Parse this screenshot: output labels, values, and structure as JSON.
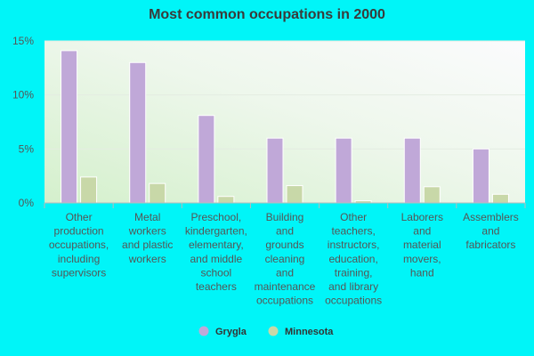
{
  "chart_data": {
    "type": "bar",
    "title": "Most common occupations in 2000",
    "categories": [
      "Other production occupations, including supervisors",
      "Metal workers and plastic workers",
      "Preschool, kindergarten, elementary, and middle school teachers",
      "Building and grounds cleaning and maintenance occupations",
      "Other teachers, instructors, education, training, and library occupations",
      "Laborers and material movers, hand",
      "Assemblers and fabricators"
    ],
    "category_lines": [
      [
        "Other",
        "production",
        "occupations,",
        "including",
        "supervisors"
      ],
      [
        "Metal",
        "workers",
        "and plastic",
        "workers"
      ],
      [
        "Preschool,",
        "kindergarten,",
        "elementary,",
        "and middle",
        "school",
        "teachers"
      ],
      [
        "Building",
        "and",
        "grounds",
        "cleaning",
        "and",
        "maintenance",
        "occupations"
      ],
      [
        "Other",
        "teachers,",
        "instructors,",
        "education,",
        "training,",
        "and library",
        "occupations"
      ],
      [
        "Laborers",
        "and",
        "material",
        "movers,",
        "hand"
      ],
      [
        "Assemblers",
        "and",
        "fabricators"
      ]
    ],
    "series": [
      {
        "name": "Grygla",
        "color": "#c0a8d8",
        "values": [
          14.1,
          13.0,
          8.1,
          6.0,
          6.0,
          6.0,
          5.0
        ]
      },
      {
        "name": "Minnesota",
        "color": "#c8d8a8",
        "values": [
          2.4,
          1.8,
          0.6,
          1.6,
          0.2,
          1.5,
          0.8
        ]
      }
    ],
    "yticks": [
      {
        "value": 0,
        "label": "0%"
      },
      {
        "value": 5,
        "label": "5%"
      },
      {
        "value": 10,
        "label": "10%"
      },
      {
        "value": 15,
        "label": "15%"
      }
    ],
    "ylim": [
      0,
      15
    ],
    "xlabel": "",
    "ylabel": "",
    "grid": true,
    "legend_position": "bottom"
  }
}
